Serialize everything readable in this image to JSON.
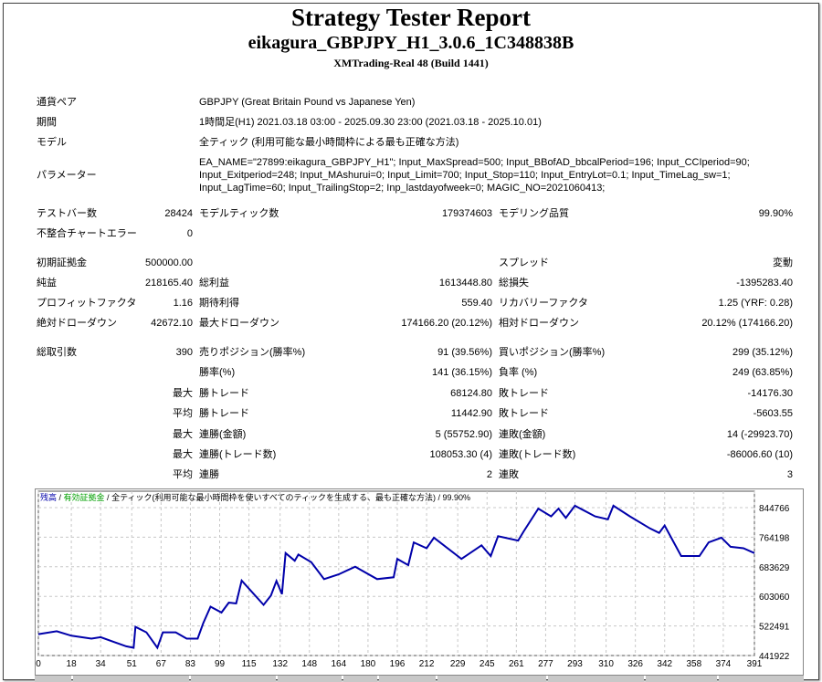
{
  "header": {
    "title": "Strategy Tester Report",
    "ea": "eikagura_GBPJPY_H1_3.0.6_1C348838B",
    "server": "XMTrading-Real 48 (Build 1441)"
  },
  "info": [
    {
      "label": "通貨ペア",
      "value": "GBPJPY (Great Britain Pound vs Japanese Yen)"
    },
    {
      "label": "期間",
      "value": "1時間足(H1) 2021.03.18 03:00 - 2025.09.30 23:00 (2021.03.18 - 2025.10.01)"
    },
    {
      "label": "モデル",
      "value": "全ティック (利用可能な最小時間枠による最も正確な方法)"
    },
    {
      "label": "パラメーター",
      "lines": [
        "EA_NAME=\"27899:eikagura_GBPJPY_H1\"; Input_MaxSpread=500; Input_BBofAD_bbcalPeriod=196; Input_CCIperiod=90;",
        "Input_Exitperiod=248; Input_MAshurui=0; Input_Limit=700; Input_Stop=110; Input_EntryLot=0.1; Input_TimeLag_sw=1;",
        "Input_LagTime=60; Input_TrailingStop=2; Inp_lastdayofweek=0; MAGIC_NO=2021060413;"
      ]
    }
  ],
  "stats": [
    [
      "テストバー数",
      "28424",
      "モデルティック数",
      "179374603",
      "モデリング品質",
      "99.90%"
    ],
    [
      "不整合チャートエラー",
      "0",
      "",
      "",
      "",
      ""
    ],
    [
      "初期証拠金",
      "500000.00",
      "",
      "",
      "スプレッド",
      "変動"
    ],
    [
      "純益",
      "218165.40",
      "総利益",
      "1613448.80",
      "総損失",
      "-1395283.40"
    ],
    [
      "プロフィットファクタ",
      "1.16",
      "期待利得",
      "559.40",
      "リカバリーファクタ",
      "1.25 (YRF: 0.28)"
    ],
    [
      "絶対ドローダウン",
      "42672.10",
      "最大ドローダウン",
      "174166.20 (20.12%)",
      "相対ドローダウン",
      "20.12% (174166.20)"
    ],
    [
      "総取引数",
      "390",
      "売りポジション(勝率%)",
      "91 (39.56%)",
      "買いポジション(勝率%)",
      "299 (35.12%)"
    ],
    [
      "",
      "",
      "勝率(%)",
      "141 (36.15%)",
      "負率 (%)",
      "249 (63.85%)"
    ],
    [
      "",
      "最大",
      "勝トレード",
      "68124.80",
      "敗トレード",
      "-14176.30"
    ],
    [
      "",
      "平均",
      "勝トレード",
      "11442.90",
      "敗トレード",
      "-5603.55"
    ],
    [
      "",
      "最大",
      "連勝(金額)",
      "5 (55752.90)",
      "連敗(金額)",
      "14 (-29923.70)"
    ],
    [
      "",
      "最大",
      "連勝(トレード数)",
      "108053.30 (4)",
      "連敗(トレード数)",
      "-86006.60 (10)"
    ],
    [
      "",
      "平均",
      "連勝",
      "2",
      "連敗",
      "3"
    ]
  ],
  "chart_data": {
    "type": "line",
    "legend": {
      "balance": "残高",
      "equity": "有効証拠金",
      "model": "全ティック(利用可能な最小時間枠を使いすべてのティックを生成する、最も正確な方法)",
      "quality": "99.90%",
      "sep": " / "
    },
    "colors": {
      "balance": "#0000aa",
      "equity": "#00a000",
      "grid": "#c8c8c8"
    },
    "x_ticks": [
      0,
      18,
      34,
      51,
      67,
      83,
      99,
      115,
      132,
      148,
      164,
      180,
      196,
      212,
      229,
      245,
      261,
      277,
      293,
      310,
      326,
      342,
      358,
      374,
      391
    ],
    "y_ticks": [
      441922,
      522491,
      603060,
      683629,
      764198,
      844766
    ],
    "xlim": [
      0,
      391
    ],
    "ylim": [
      441922,
      885000
    ],
    "series": [
      {
        "name": "残高",
        "x": [
          0,
          10,
          18,
          29,
          34,
          48,
          52,
          53,
          59,
          65,
          68,
          75,
          81,
          87,
          90,
          94,
          100,
          104,
          108,
          111,
          123,
          127,
          130,
          133,
          135,
          140,
          142,
          149,
          156,
          164,
          173,
          185,
          194,
          196,
          202,
          205,
          212,
          216,
          231,
          242,
          247,
          251,
          262,
          265,
          273,
          280,
          284,
          288,
          293,
          304,
          311,
          314,
          323,
          334,
          339,
          342,
          351,
          361,
          366,
          373,
          378,
          385,
          391
        ],
        "y": [
          500000,
          508000,
          496000,
          488000,
          492000,
          467000,
          463000,
          520000,
          505000,
          463000,
          505000,
          505000,
          488000,
          488000,
          530000,
          575000,
          559000,
          586000,
          584000,
          646000,
          580000,
          605000,
          645000,
          609000,
          721000,
          700000,
          717000,
          696000,
          650000,
          663000,
          684000,
          650000,
          655000,
          705000,
          688000,
          750000,
          734000,
          763000,
          705000,
          742000,
          713000,
          767000,
          755000,
          780000,
          842000,
          821000,
          842000,
          817000,
          850000,
          821000,
          813000,
          850000,
          821000,
          788000,
          776000,
          796000,
          713000,
          713000,
          750000,
          763000,
          738000,
          734000,
          721000
        ]
      }
    ]
  }
}
